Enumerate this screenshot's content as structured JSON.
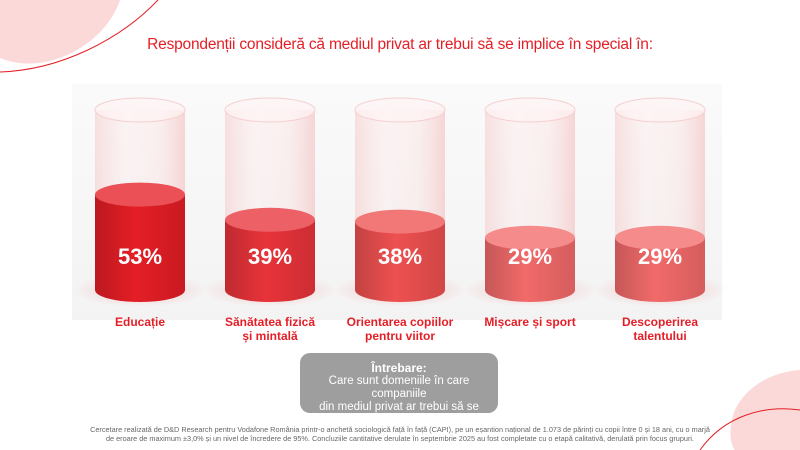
{
  "title": "Respondenții consideră că mediul privat ar trebui să se implice în special în:",
  "colors": {
    "accent": "#e41e26",
    "bars": [
      "#e41e26",
      "#e8333a",
      "#ee5050",
      "#f26a6a",
      "#f26a6a"
    ],
    "question_box": "#9e9e9e"
  },
  "chart_data": {
    "type": "bar",
    "categories": [
      [
        "Educație"
      ],
      [
        "Sănătatea fizică",
        "și mintală"
      ],
      [
        "Orientarea copiilor",
        "pentru viitor"
      ],
      [
        "Mișcare și sport"
      ],
      [
        "Descoperirea",
        "talentului"
      ]
    ],
    "values": [
      53,
      39,
      38,
      29,
      29
    ],
    "value_labels": [
      "53%",
      "39%",
      "38%",
      "29%",
      "29%"
    ],
    "ylim": [
      0,
      100
    ],
    "grid": false,
    "legend": "none"
  },
  "question": {
    "title": "Întrebare:",
    "line1": "Care sunt domeniile în care companiile",
    "line2": "din mediul privat ar trebui să se implice?"
  },
  "footnote": {
    "line1": "Cercetare realizată de D&D Research pentru Vodafone România printr-o anchetă sociologică față în față (CAPI), pe un eșantion național de 1.073 de părinți cu copii între 0 și 18 ani, cu o marjă",
    "line2": "de eroare de maximum ±3,0% și un nivel de încredere de 95%. Concluziile cantitative derulate în septembrie 2025 au fost completate cu o etapă calitativă, derulată prin focus grupuri."
  }
}
